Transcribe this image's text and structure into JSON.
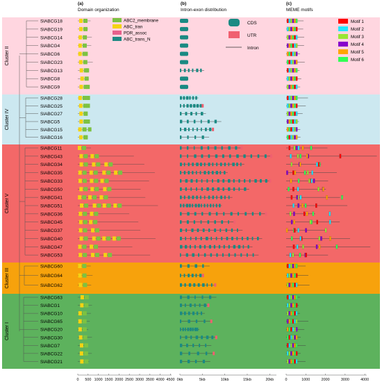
{
  "panels": {
    "a": {
      "letter": "(a)",
      "title": "Domain organization"
    },
    "b": {
      "letter": "(b)",
      "title": "Intron-exon distribution"
    },
    "c": {
      "letter": "(c)",
      "title": "MEME motifs"
    }
  },
  "clusters": [
    {
      "name": "Cluster II",
      "color": "#ffd6e0",
      "genes": [
        "SlABCG18",
        "SlABCG19",
        "SlABCG14",
        "SlABCG4",
        "SlABCG6",
        "SlABCG23",
        "SlABCG13",
        "SlABCG8",
        "SlABCG9"
      ]
    },
    {
      "name": "Cluster IV",
      "color": "#cce8f0",
      "genes": [
        "SlABCG28",
        "SlABCG25",
        "SlABCG27",
        "SlABCG5",
        "SlABCG15",
        "SlABCG16"
      ]
    },
    {
      "name": "Cluster V",
      "color": "#f36868",
      "genes": [
        "SlABCG11",
        "SlABCG43",
        "SlABCG34",
        "SlABCG35",
        "SlABCG33",
        "SlABCG50",
        "SlABCG41",
        "SlABCG51",
        "SlABCG36",
        "SlABCG45",
        "SlABCG37",
        "SlABCG40",
        "SlABCG47",
        "SlABCG53"
      ]
    },
    {
      "name": "Cluster III",
      "color": "#f7a20c",
      "genes": [
        "SlABCG60",
        "SlABCG64",
        "SlABCG62"
      ]
    },
    {
      "name": "Cluster I",
      "color": "#5db25d",
      "genes": [
        "SlABCG63",
        "SlABCG1",
        "SlABCG10",
        "SlABCG65",
        "SlABCG20",
        "SlABCG30",
        "SlABCG7",
        "SlABCG22",
        "SlABCG21"
      ]
    }
  ],
  "domain_legend": [
    {
      "label": "ABC2_membrane",
      "color": "#7cc242"
    },
    {
      "label": "ABC_tran",
      "color": "#f5d312"
    },
    {
      "label": "PDR_assoc",
      "color": "#e8618c"
    },
    {
      "label": "ABC_trans_N",
      "color": "#1f8a84"
    }
  ],
  "structure_legend": [
    {
      "label": "CDS",
      "color": "#1a8a83"
    },
    {
      "label": "UTR",
      "color": "#f06070"
    },
    {
      "label": "Intron",
      "color": "#333333"
    }
  ],
  "motif_legend": [
    {
      "label": "Motif 1",
      "color": "#ff0000"
    },
    {
      "label": "Motif 2",
      "color": "#22e6ff"
    },
    {
      "label": "Motif 3",
      "color": "#99e633"
    },
    {
      "label": "Motif 4",
      "color": "#8800cc"
    },
    {
      "label": "Motif 5",
      "color": "#ffa500"
    },
    {
      "label": "Motif 6",
      "color": "#33ff55"
    }
  ],
  "axes": {
    "a": {
      "ticks": [
        "0",
        "500",
        "1000",
        "1500",
        "2000",
        "2500",
        "3000",
        "3500",
        "4000",
        "4500"
      ]
    },
    "b": {
      "ticks": [
        "0kb",
        "5kb",
        "10kb",
        "15kb",
        "20kb"
      ]
    },
    "c": {
      "ticks": [
        "0",
        "1000",
        "2000",
        "3000",
        "4000"
      ]
    }
  }
}
